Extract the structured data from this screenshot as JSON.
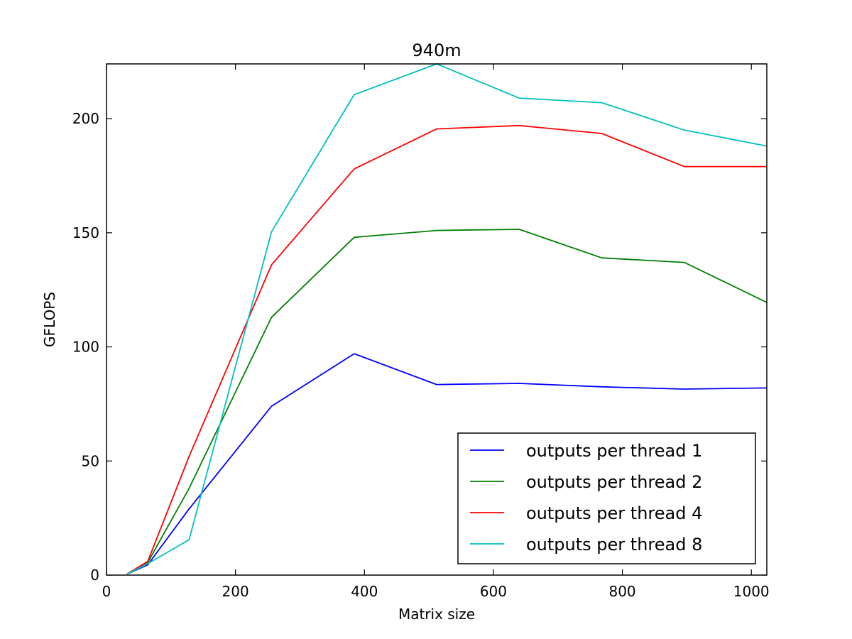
{
  "chart_data": {
    "type": "line",
    "title": "940m",
    "xlabel": "Matrix size",
    "ylabel": "GFLOPS",
    "xlim": [
      0,
      1024
    ],
    "ylim": [
      0,
      224
    ],
    "xticks": [
      0,
      200,
      400,
      600,
      800,
      1000
    ],
    "yticks": [
      0,
      50,
      100,
      150,
      200
    ],
    "grid": false,
    "legend_position": "lower-right",
    "x": [
      32,
      64,
      128,
      256,
      384,
      512,
      640,
      768,
      896,
      1024
    ],
    "series": [
      {
        "name": "outputs per thread 1",
        "color": "#0000ff",
        "values": [
          0.5,
          4.5,
          29,
          74,
          97,
          83.5,
          84,
          82.5,
          81.5,
          82
        ]
      },
      {
        "name": "outputs per thread 2",
        "color": "#008000",
        "values": [
          0.5,
          5.5,
          38,
          113,
          148,
          151,
          151.5,
          139,
          137,
          119.5
        ]
      },
      {
        "name": "outputs per thread 4",
        "color": "#ff0000",
        "values": [
          0.5,
          6,
          52,
          136,
          178,
          195.5,
          197,
          193.5,
          179,
          179
        ]
      },
      {
        "name": "outputs per thread 8",
        "color": "#00bfbf",
        "values": [
          0.5,
          5,
          15.5,
          150.5,
          210.5,
          224,
          209,
          207,
          195,
          188
        ]
      }
    ]
  }
}
